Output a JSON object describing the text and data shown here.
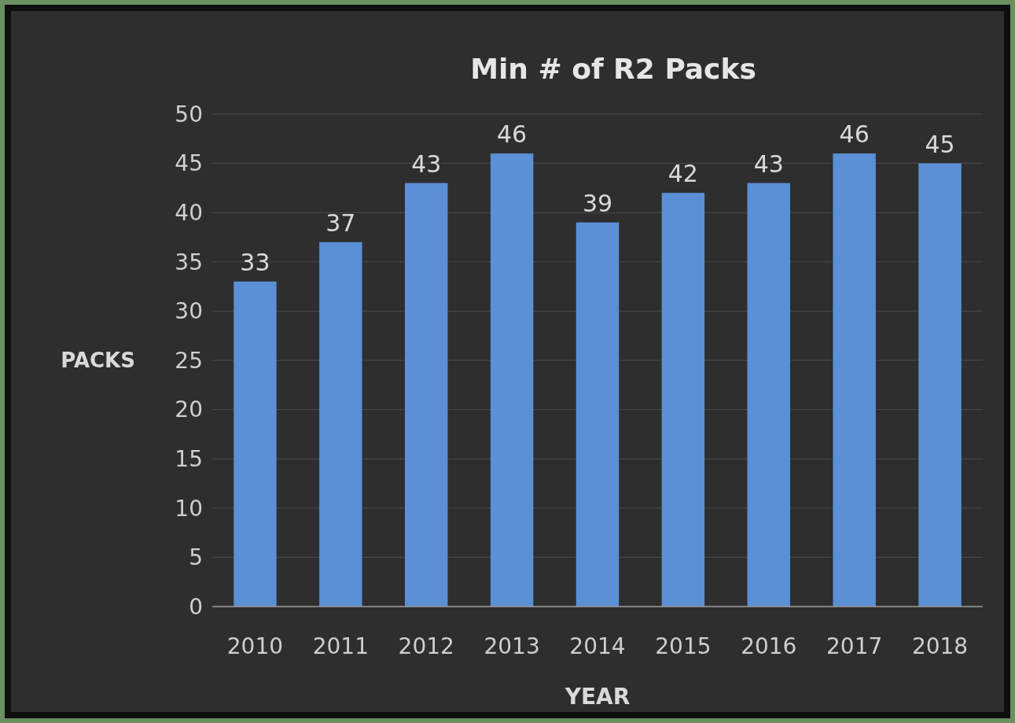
{
  "chart_data": {
    "type": "bar",
    "title": "Min # of R2 Packs",
    "xlabel": "YEAR",
    "ylabel": "PACKS",
    "categories": [
      "2010",
      "2011",
      "2012",
      "2013",
      "2014",
      "2015",
      "2016",
      "2017",
      "2018"
    ],
    "values": [
      33,
      37,
      43,
      46,
      39,
      42,
      43,
      46,
      45
    ],
    "color": "#5b8fd6",
    "ylim": [
      0,
      50
    ],
    "yticks": [
      0,
      5,
      10,
      15,
      20,
      25,
      30,
      35,
      40,
      45,
      50
    ],
    "grid": "y",
    "data_labels": true
  }
}
